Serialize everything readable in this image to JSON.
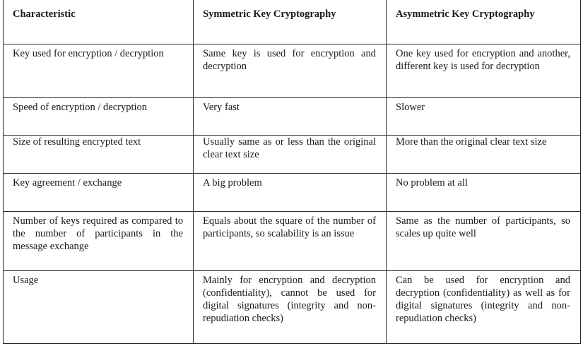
{
  "table": {
    "headers": [
      "Characteristic",
      "Symmetric Key Cryptography",
      "Asymmetric Key Cryptography"
    ],
    "rows": [
      {
        "characteristic": "Key used for encryption / decryption",
        "symmetric": "Same key is used for encryption and decryption",
        "asymmetric": "One key used for encryption and another, different key is used for decryption"
      },
      {
        "characteristic": "Speed of encryption / decryption",
        "symmetric": "Very fast",
        "asymmetric": "Slower"
      },
      {
        "characteristic": "Size of resulting encrypted text",
        "symmetric": "Usually same as or less than the original clear text size",
        "asymmetric": "More than the original clear text size"
      },
      {
        "characteristic": "Key agreement / exchange",
        "symmetric": "A big problem",
        "asymmetric": "No problem at all"
      },
      {
        "characteristic": "Number of keys required as compared to the number of participants in the message exchange",
        "symmetric": "Equals about the square of the number of participants, so scalability is an issue",
        "asymmetric": "Same as the number of participants, so scales up quite well"
      },
      {
        "characteristic": "Usage",
        "symmetric": "Mainly for encryption and decryption (confidentiality), cannot be used for digital signatures (integrity and non-repudiation checks)",
        "asymmetric": "Can be used for encryption and decryption (confidentiality) as well as for digital signatures (integrity and non-repudiation checks)"
      }
    ]
  }
}
